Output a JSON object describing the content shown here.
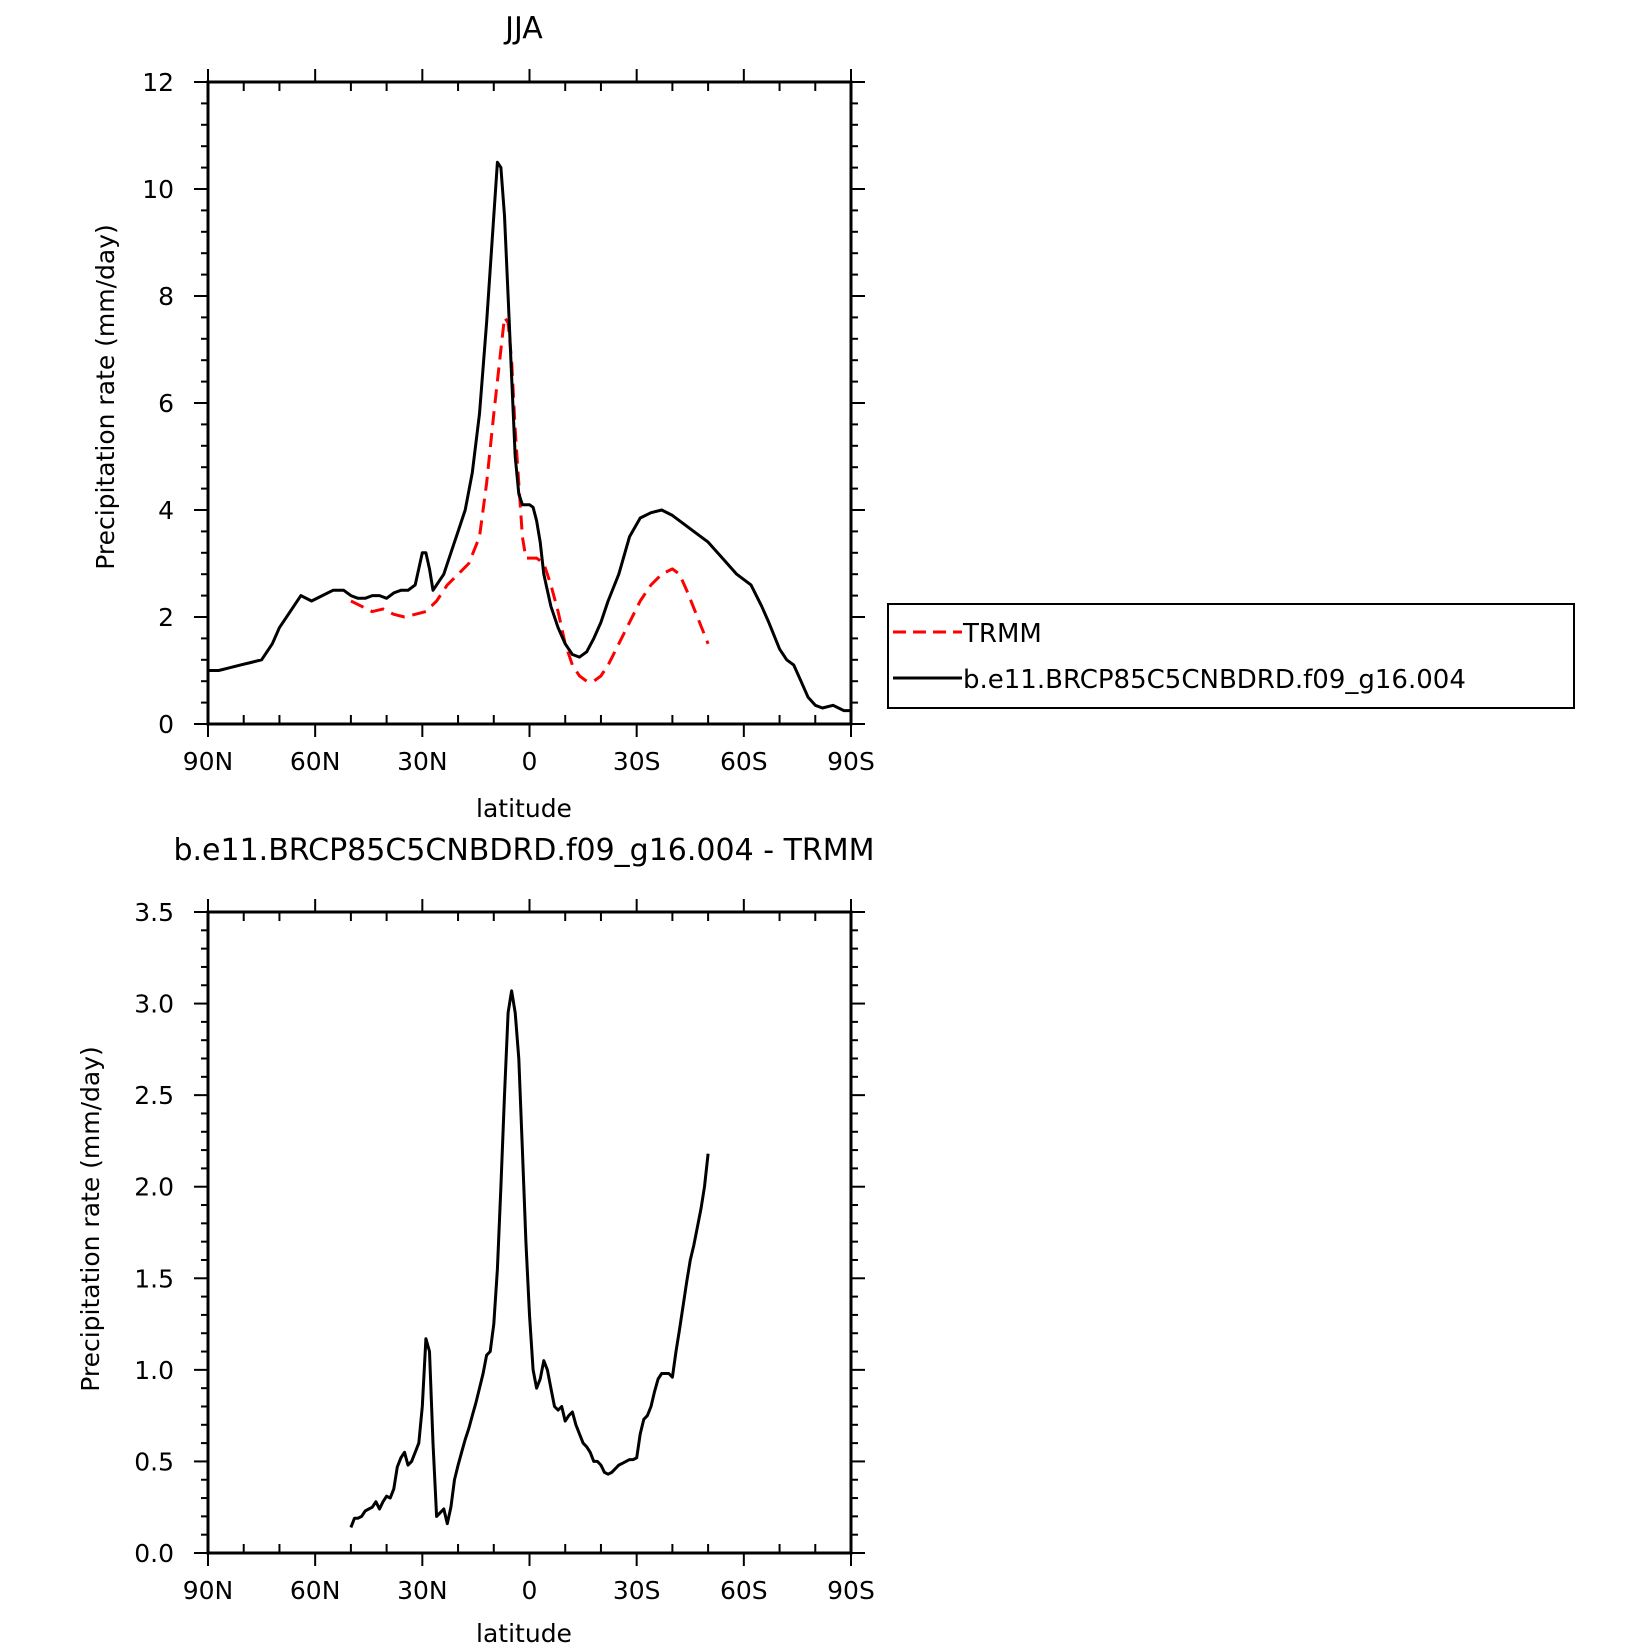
{
  "chart_data": [
    {
      "type": "line",
      "title": "JJA",
      "xlabel": "latitude",
      "ylabel": "Precipitation rate (mm/day)",
      "xlim": [
        90,
        -90
      ],
      "ylim": [
        0,
        12
      ],
      "x_ticks": [
        90,
        60,
        30,
        0,
        -30,
        -60,
        -90
      ],
      "x_tick_labels": [
        "90N",
        "60N",
        "30N",
        "0",
        "30S",
        "60S",
        "90S"
      ],
      "y_ticks": [
        0,
        2,
        4,
        6,
        8,
        10,
        12
      ],
      "y_tick_labels": [
        "0",
        "2",
        "4",
        "6",
        "8",
        "10",
        "12"
      ],
      "legend": "right",
      "series": [
        {
          "name": "TRMM",
          "color": "#ff0000",
          "style": "dashed",
          "x": [
            50,
            47,
            44,
            41,
            38,
            35,
            32,
            29,
            26,
            23,
            20,
            17,
            14,
            12,
            10,
            8,
            7,
            6,
            5,
            4,
            2,
            1,
            0,
            -2,
            -4,
            -6,
            -8,
            -10,
            -12,
            -14,
            -16,
            -18,
            -20,
            -22,
            -25,
            -28,
            -31,
            -34,
            -37,
            -40,
            -42,
            -44,
            -47,
            -50
          ],
          "y": [
            2.3,
            2.2,
            2.1,
            2.15,
            2.05,
            2.0,
            2.05,
            2.1,
            2.3,
            2.6,
            2.8,
            3.0,
            3.5,
            4.5,
            5.8,
            7.0,
            7.6,
            7.5,
            6.8,
            5.5,
            3.5,
            3.1,
            3.1,
            3.1,
            3.0,
            2.6,
            2.1,
            1.5,
            1.1,
            0.9,
            0.8,
            0.8,
            0.9,
            1.1,
            1.5,
            1.9,
            2.3,
            2.6,
            2.8,
            2.9,
            2.8,
            2.5,
            2.0,
            1.5
          ]
        },
        {
          "name": "b.e11.BRCP85C5CNBDRD.f09_g16.004",
          "color": "#000000",
          "style": "solid",
          "x": [
            90,
            87,
            84,
            81,
            78,
            75,
            72,
            70,
            67,
            64,
            61,
            58,
            55,
            52,
            50,
            48,
            46,
            44,
            42,
            40,
            38,
            36,
            34,
            32,
            30,
            29,
            28,
            27,
            26,
            24,
            22,
            20,
            18,
            16,
            14,
            12,
            10,
            9,
            8,
            7,
            6,
            5,
            4,
            3,
            2,
            1,
            0,
            -1,
            -2,
            -3,
            -4,
            -6,
            -8,
            -10,
            -12,
            -14,
            -16,
            -18,
            -20,
            -22,
            -25,
            -28,
            -31,
            -34,
            -37,
            -40,
            -43,
            -46,
            -50,
            -54,
            -58,
            -62,
            -65,
            -67,
            -70,
            -72,
            -74,
            -76,
            -78,
            -80,
            -82,
            -85,
            -88,
            -90
          ],
          "y": [
            1.0,
            1.0,
            1.05,
            1.1,
            1.15,
            1.2,
            1.5,
            1.8,
            2.1,
            2.4,
            2.3,
            2.4,
            2.5,
            2.5,
            2.4,
            2.35,
            2.35,
            2.4,
            2.4,
            2.35,
            2.45,
            2.5,
            2.5,
            2.6,
            3.2,
            3.2,
            2.9,
            2.5,
            2.6,
            2.8,
            3.2,
            3.6,
            4.0,
            4.7,
            5.8,
            7.5,
            9.5,
            10.5,
            10.4,
            9.5,
            8.0,
            6.5,
            5.0,
            4.3,
            4.1,
            4.1,
            4.1,
            4.05,
            3.8,
            3.4,
            2.8,
            2.2,
            1.8,
            1.5,
            1.3,
            1.25,
            1.35,
            1.6,
            1.9,
            2.3,
            2.8,
            3.5,
            3.85,
            3.95,
            4.0,
            3.9,
            3.75,
            3.6,
            3.4,
            3.1,
            2.8,
            2.6,
            2.2,
            1.9,
            1.4,
            1.2,
            1.1,
            0.8,
            0.5,
            0.35,
            0.3,
            0.35,
            0.25,
            0.25
          ]
        }
      ]
    },
    {
      "type": "line",
      "title": "b.e11.BRCP85C5CNBDRD.f09_g16.004 - TRMM",
      "xlabel": "latitude",
      "ylabel": "Precipitation rate (mm/day)",
      "xlim": [
        90,
        -90
      ],
      "ylim": [
        0,
        3.5
      ],
      "x_ticks": [
        90,
        60,
        30,
        0,
        -30,
        -60,
        -90
      ],
      "x_tick_labels": [
        "90N",
        "60N",
        "30N",
        "0",
        "30S",
        "60S",
        "90S"
      ],
      "y_ticks": [
        0,
        0.5,
        1.0,
        1.5,
        2.0,
        2.5,
        3.0,
        3.5
      ],
      "y_tick_labels": [
        "0.0",
        "0.5",
        "1.0",
        "1.5",
        "2.0",
        "2.5",
        "3.0",
        "3.5"
      ],
      "series": [
        {
          "color": "#000000",
          "style": "solid",
          "x": [
            50,
            49,
            48,
            47,
            46,
            45,
            44,
            43,
            42,
            41,
            40,
            39,
            38,
            37,
            36,
            35,
            34,
            33,
            32,
            31,
            30,
            29,
            28,
            27,
            26,
            25,
            24,
            23,
            22,
            21,
            20,
            19,
            18,
            17,
            16,
            15,
            14,
            13,
            12,
            11,
            10,
            9,
            8,
            7,
            6,
            5,
            4,
            3,
            2,
            1,
            0,
            -1,
            -2,
            -3,
            -4,
            -5,
            -6,
            -7,
            -8,
            -9,
            -10,
            -11,
            -12,
            -13,
            -14,
            -15,
            -16,
            -17,
            -18,
            -19,
            -20,
            -21,
            -22,
            -23,
            -24,
            -25,
            -26,
            -27,
            -28,
            -29,
            -30,
            -31,
            -32,
            -33,
            -34,
            -35,
            -36,
            -37,
            -38,
            -39,
            -40,
            -41,
            -42,
            -43,
            -44,
            -45,
            -46,
            -47,
            -48,
            -49,
            -50
          ],
          "y": [
            0.14,
            0.19,
            0.19,
            0.2,
            0.23,
            0.24,
            0.25,
            0.28,
            0.24,
            0.28,
            0.31,
            0.3,
            0.35,
            0.47,
            0.52,
            0.55,
            0.48,
            0.5,
            0.55,
            0.6,
            0.8,
            1.17,
            1.1,
            0.6,
            0.2,
            0.22,
            0.24,
            0.16,
            0.25,
            0.4,
            0.48,
            0.55,
            0.62,
            0.68,
            0.75,
            0.82,
            0.9,
            0.98,
            1.08,
            1.1,
            1.25,
            1.55,
            2.0,
            2.5,
            2.95,
            3.07,
            2.95,
            2.7,
            2.2,
            1.7,
            1.3,
            1.0,
            0.9,
            0.95,
            1.05,
            1.0,
            0.9,
            0.8,
            0.78,
            0.8,
            0.72,
            0.75,
            0.77,
            0.7,
            0.65,
            0.6,
            0.58,
            0.55,
            0.5,
            0.5,
            0.48,
            0.44,
            0.43,
            0.44,
            0.46,
            0.48,
            0.49,
            0.5,
            0.51,
            0.51,
            0.52,
            0.65,
            0.73,
            0.75,
            0.8,
            0.88,
            0.95,
            0.98,
            0.98,
            0.98,
            0.96,
            1.1,
            1.22,
            1.35,
            1.48,
            1.6,
            1.68,
            1.78,
            1.88,
            2.0,
            2.18
          ]
        }
      ]
    }
  ]
}
